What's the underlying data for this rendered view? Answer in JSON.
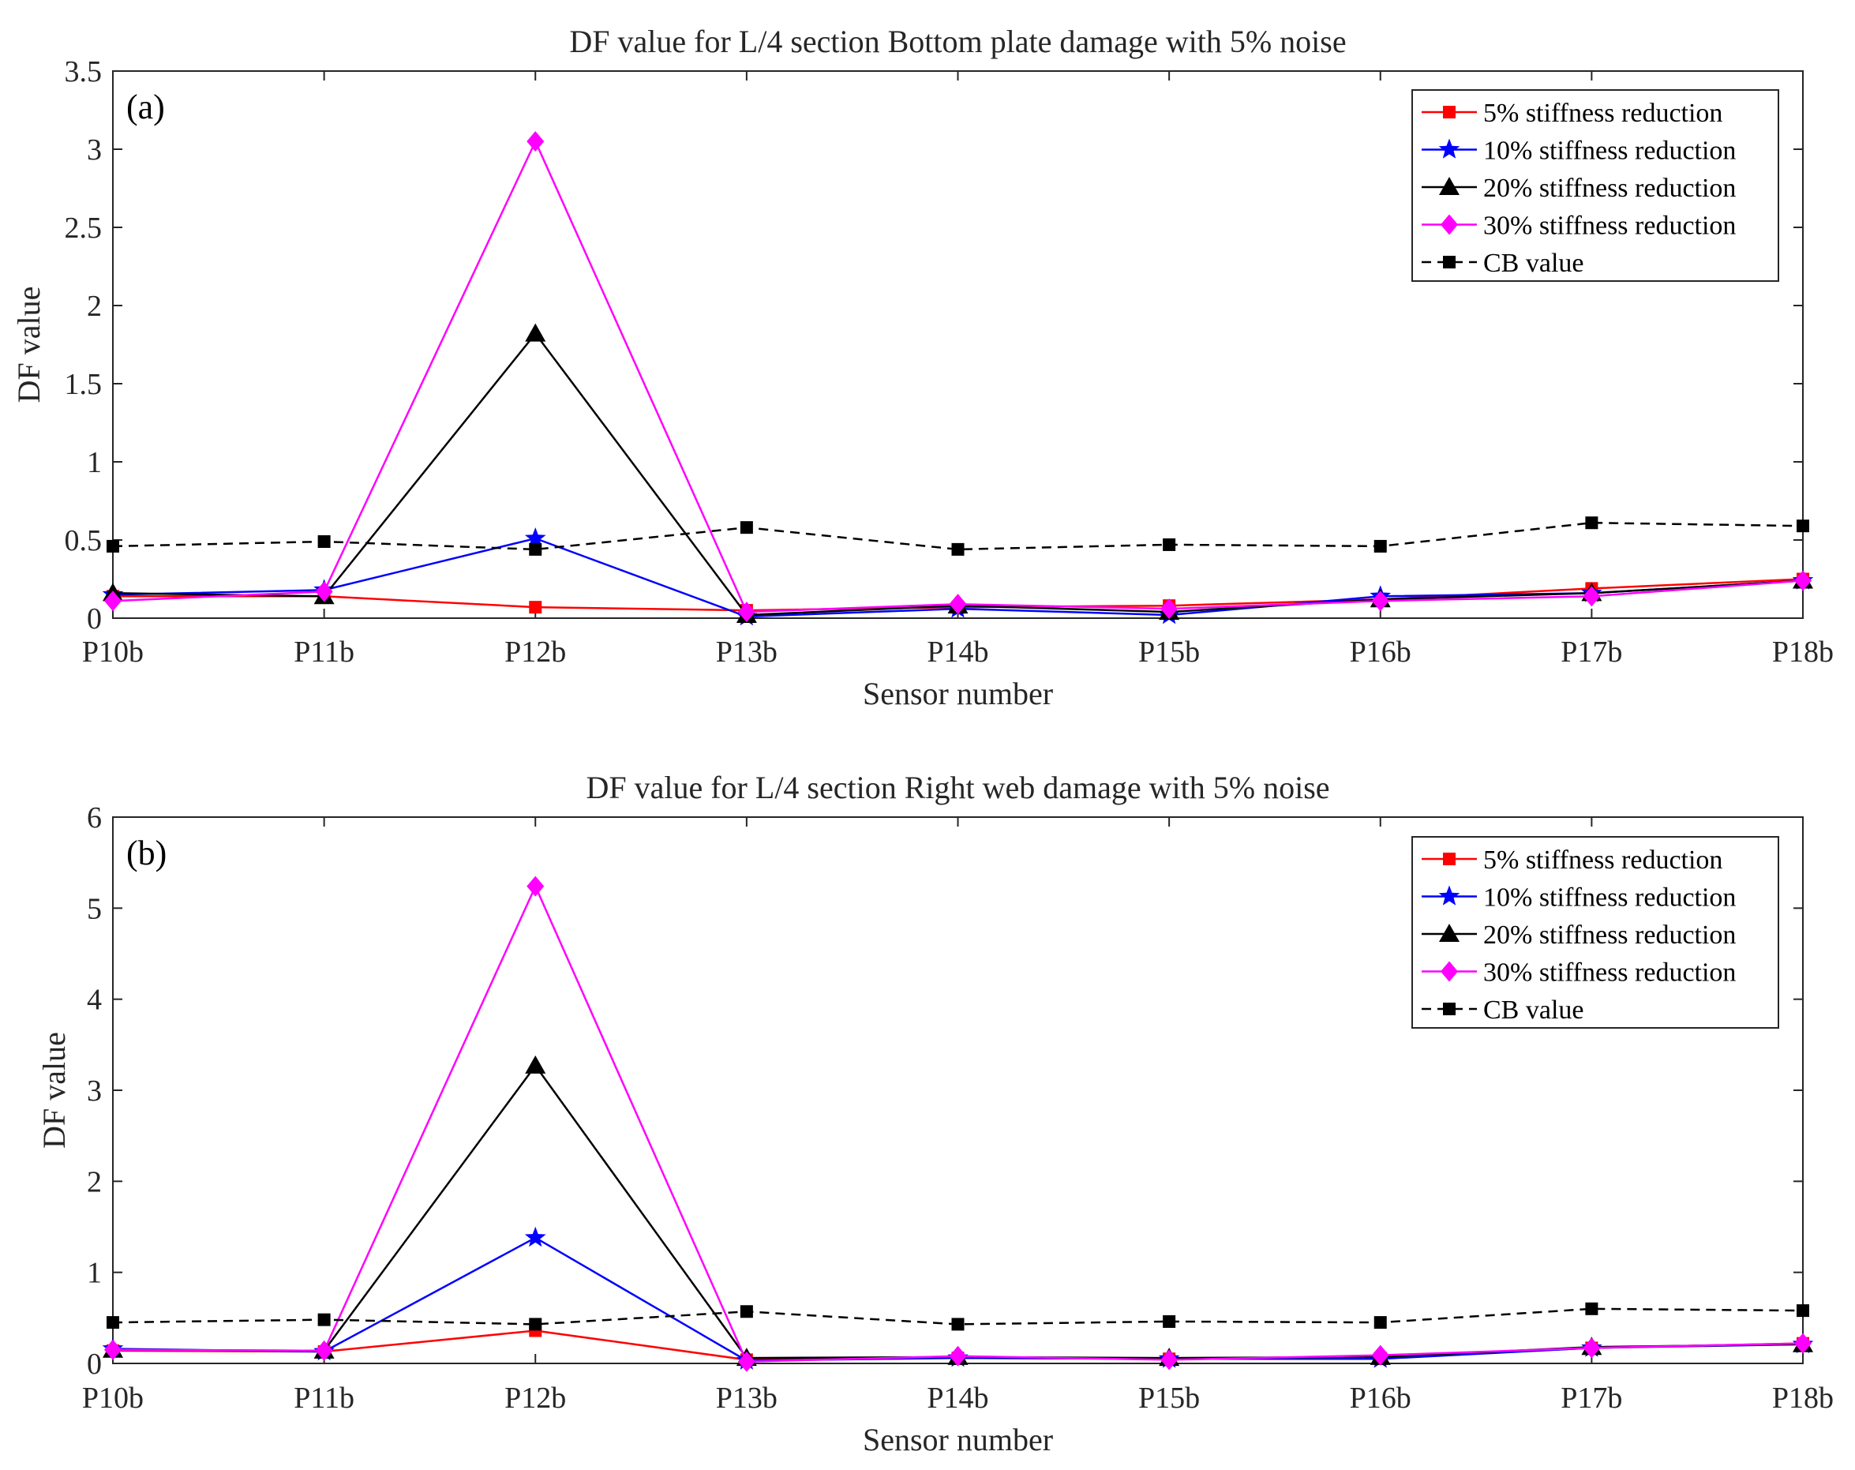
{
  "chart_data": [
    {
      "type": "line",
      "panel_label": "(a)",
      "title": "DF value  for L/4 section Bottom plate damage with 5% noise",
      "xlabel": "Sensor number",
      "ylabel": "DF value",
      "categories": [
        "P10b",
        "P11b",
        "P12b",
        "P13b",
        "P14b",
        "P15b",
        "P16b",
        "P17b",
        "P18b"
      ],
      "ylim": [
        0,
        3.5
      ],
      "yticks": [
        0,
        0.5,
        1,
        1.5,
        2,
        2.5,
        3,
        3.5
      ],
      "ytick_labels": [
        "0",
        "0.5",
        "1",
        "1.5",
        "2",
        "2.5",
        "3",
        "3.5"
      ],
      "legend_position": "top-right",
      "series": [
        {
          "name": "5% stiffness reduction",
          "color": "#ff0000",
          "marker": "square",
          "dash": false,
          "values": [
            0.14,
            0.14,
            0.07,
            0.05,
            0.07,
            0.08,
            0.12,
            0.19,
            0.25
          ]
        },
        {
          "name": "10% stiffness reduction",
          "color": "#0000ff",
          "marker": "star",
          "dash": false,
          "values": [
            0.15,
            0.18,
            0.51,
            0.01,
            0.06,
            0.02,
            0.14,
            0.16,
            0.24
          ]
        },
        {
          "name": "20% stiffness reduction",
          "color": "#000000",
          "marker": "triangle",
          "dash": false,
          "values": [
            0.16,
            0.14,
            1.82,
            0.02,
            0.08,
            0.04,
            0.12,
            0.16,
            0.24
          ]
        },
        {
          "name": "30% stiffness reduction",
          "color": "#ff00ff",
          "marker": "diamond",
          "dash": false,
          "values": [
            0.11,
            0.17,
            3.05,
            0.04,
            0.09,
            0.06,
            0.11,
            0.14,
            0.24
          ]
        },
        {
          "name": "CB value",
          "color": "#000000",
          "marker": "square",
          "dash": true,
          "values": [
            0.46,
            0.49,
            0.44,
            0.58,
            0.44,
            0.47,
            0.46,
            0.61,
            0.59
          ]
        }
      ]
    },
    {
      "type": "line",
      "panel_label": "(b)",
      "title": "DF value  for L/4 section Right web damage with 5% noise",
      "xlabel": "Sensor number",
      "ylabel": "DF value",
      "categories": [
        "P10b",
        "P11b",
        "P12b",
        "P13b",
        "P14b",
        "P15b",
        "P16b",
        "P17b",
        "P18b"
      ],
      "ylim": [
        0,
        6
      ],
      "yticks": [
        0,
        1,
        2,
        3,
        4,
        5,
        6
      ],
      "ytick_labels": [
        "0",
        "1",
        "2",
        "3",
        "4",
        "5",
        "6"
      ],
      "legend_position": "top-right",
      "series": [
        {
          "name": "5% stiffness reduction",
          "color": "#ff0000",
          "marker": "square",
          "dash": false,
          "values": [
            0.14,
            0.13,
            0.36,
            0.04,
            0.06,
            0.05,
            0.06,
            0.17,
            0.22
          ]
        },
        {
          "name": "10% stiffness reduction",
          "color": "#0000ff",
          "marker": "star",
          "dash": false,
          "values": [
            0.16,
            0.13,
            1.38,
            0.03,
            0.06,
            0.05,
            0.05,
            0.17,
            0.21
          ]
        },
        {
          "name": "20% stiffness reduction",
          "color": "#000000",
          "marker": "triangle",
          "dash": false,
          "values": [
            0.15,
            0.14,
            3.27,
            0.06,
            0.07,
            0.06,
            0.07,
            0.18,
            0.21
          ]
        },
        {
          "name": "30% stiffness reduction",
          "color": "#ff00ff",
          "marker": "diamond",
          "dash": false,
          "values": [
            0.15,
            0.14,
            5.24,
            0.02,
            0.08,
            0.04,
            0.09,
            0.17,
            0.22
          ]
        },
        {
          "name": "CB value",
          "color": "#000000",
          "marker": "square",
          "dash": true,
          "values": [
            0.45,
            0.48,
            0.43,
            0.57,
            0.43,
            0.46,
            0.45,
            0.6,
            0.58
          ]
        }
      ]
    }
  ]
}
